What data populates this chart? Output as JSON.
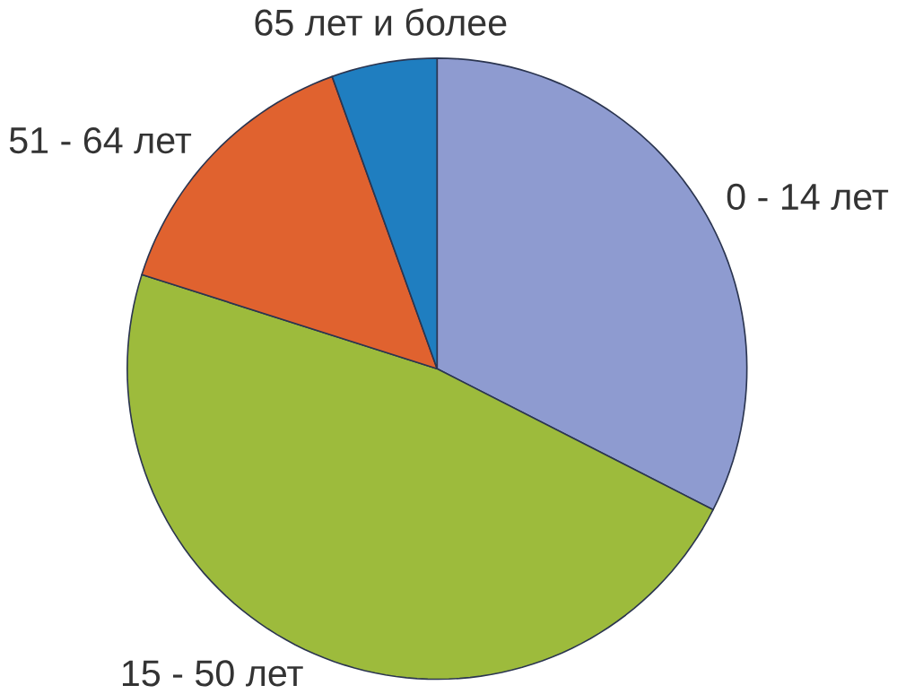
{
  "chart_data": {
    "type": "pie",
    "categories": [
      "0 - 14 лет",
      "15 - 50 лет",
      "51 - 64 лет",
      "65 лет и более"
    ],
    "values": [
      32.5,
      47.4,
      14.6,
      5.5
    ],
    "colors": [
      "#8e9bd0",
      "#9dbb3c",
      "#e0622f",
      "#1f7ec0"
    ]
  }
}
